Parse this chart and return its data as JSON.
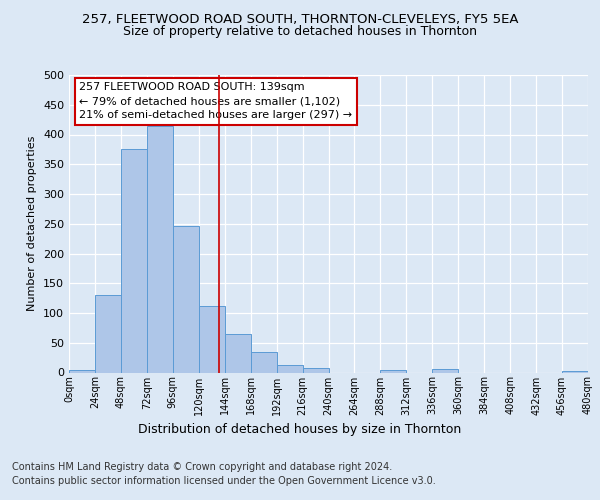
{
  "title1": "257, FLEETWOOD ROAD SOUTH, THORNTON-CLEVELEYS, FY5 5EA",
  "title2": "Size of property relative to detached houses in Thornton",
  "xlabel": "Distribution of detached houses by size in Thornton",
  "ylabel": "Number of detached properties",
  "bar_starts": [
    0,
    24,
    48,
    72,
    96,
    120,
    144,
    168,
    192,
    216,
    240,
    264,
    288,
    312,
    336,
    360,
    384,
    408,
    432,
    456
  ],
  "bar_heights": [
    4,
    130,
    375,
    415,
    247,
    111,
    64,
    34,
    13,
    8,
    0,
    0,
    5,
    0,
    6,
    0,
    0,
    0,
    0,
    2
  ],
  "bin_width": 24,
  "bar_color": "#aec6e8",
  "bar_edge_color": "#5b9bd5",
  "highlight_value": 139,
  "annotation_text1": "257 FLEETWOOD ROAD SOUTH: 139sqm",
  "annotation_text2": "← 79% of detached houses are smaller (1,102)",
  "annotation_text3": "21% of semi-detached houses are larger (297) →",
  "annotation_box_color": "#ffffff",
  "annotation_box_edge": "#cc0000",
  "vline_color": "#cc0000",
  "vline_x": 139,
  "yticks": [
    0,
    50,
    100,
    150,
    200,
    250,
    300,
    350,
    400,
    450,
    500
  ],
  "xtick_labels": [
    "0sqm",
    "24sqm",
    "48sqm",
    "72sqm",
    "96sqm",
    "120sqm",
    "144sqm",
    "168sqm",
    "192sqm",
    "216sqm",
    "240sqm",
    "264sqm",
    "288sqm",
    "312sqm",
    "336sqm",
    "360sqm",
    "384sqm",
    "408sqm",
    "432sqm",
    "456sqm",
    "480sqm"
  ],
  "xtick_positions": [
    0,
    24,
    48,
    72,
    96,
    120,
    144,
    168,
    192,
    216,
    240,
    264,
    288,
    312,
    336,
    360,
    384,
    408,
    432,
    456,
    480
  ],
  "footer1": "Contains HM Land Registry data © Crown copyright and database right 2024.",
  "footer2": "Contains public sector information licensed under the Open Government Licence v3.0.",
  "background_color": "#dce8f5",
  "axes_background": "#dce8f5",
  "grid_color": "#ffffff",
  "title1_fontsize": 9.5,
  "title2_fontsize": 9,
  "annotation_fontsize": 8,
  "footer_fontsize": 7,
  "ylabel_fontsize": 8,
  "xlabel_fontsize": 9
}
